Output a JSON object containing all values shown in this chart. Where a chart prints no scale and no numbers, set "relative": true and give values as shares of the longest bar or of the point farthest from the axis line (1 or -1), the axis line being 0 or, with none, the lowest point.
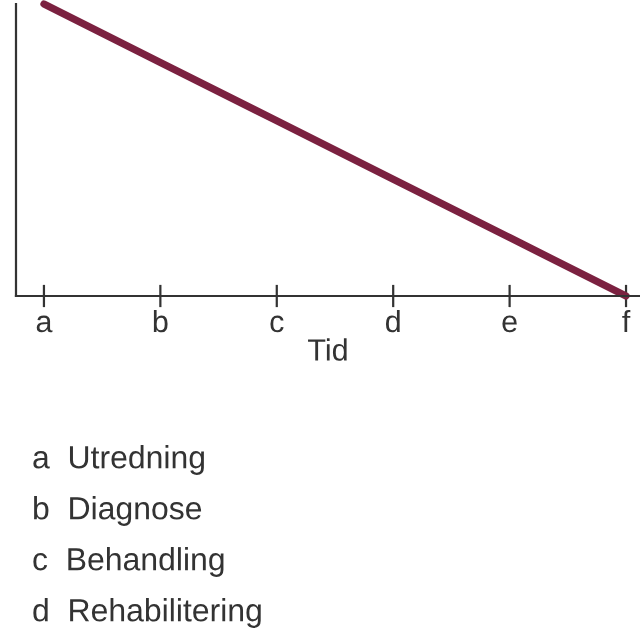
{
  "chart_data": {
    "type": "line",
    "relative": true,
    "xlabel": "Tid",
    "categories": [
      "a",
      "b",
      "c",
      "d",
      "e",
      "f"
    ],
    "series": [
      {
        "color": "#7b2140",
        "values": [
          1,
          0.8,
          0.6,
          0.4,
          0.2,
          0
        ]
      }
    ],
    "grid": false,
    "legend": false,
    "marker": "none",
    "line_style": "solid",
    "annotations": [
      "a  Utredning",
      "b  Diagnose",
      "c  Behandling",
      "d  Rehabilitering"
    ]
  }
}
